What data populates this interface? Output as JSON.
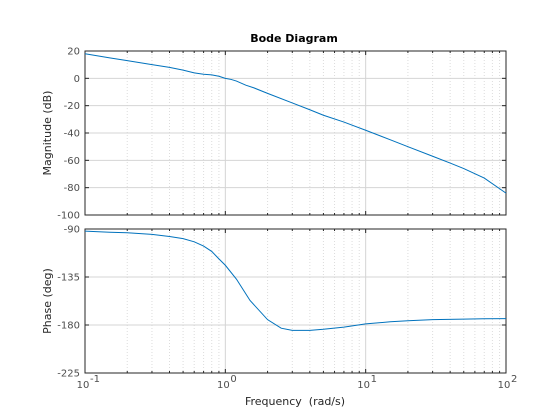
{
  "chart_data": [
    {
      "type": "line",
      "title": "Bode Diagram",
      "ylabel": "Magnitude (dB)",
      "xscale": "log",
      "xlim": [
        0.1,
        100
      ],
      "ylim": [
        -100,
        20
      ],
      "yticks": [
        "20",
        "0",
        "-20",
        "-40",
        "-60",
        "-80",
        "-100"
      ],
      "ytick_values": [
        20,
        0,
        -20,
        -40,
        -60,
        -80,
        -100
      ],
      "grid": true,
      "series": [
        {
          "color": "#0072bd",
          "x": [
            0.1,
            0.15,
            0.2,
            0.3,
            0.4,
            0.5,
            0.6,
            0.7,
            0.8,
            0.9,
            1.0,
            1.1,
            1.2,
            1.4,
            1.6,
            2,
            3,
            4,
            5,
            7,
            10,
            15,
            20,
            30,
            40,
            50,
            70,
            100
          ],
          "y": [
            18,
            15,
            13,
            10,
            8,
            6,
            4,
            3,
            2.5,
            1.5,
            0,
            -0.8,
            -2,
            -5,
            -7,
            -11,
            -18,
            -23,
            -27,
            -32,
            -38,
            -45,
            -50,
            -57,
            -62,
            -66,
            -73,
            -84
          ]
        }
      ]
    },
    {
      "type": "line",
      "xlabel": "Frequency  (rad/s)",
      "ylabel": "Phase (deg)",
      "xscale": "log",
      "xlim": [
        0.1,
        100
      ],
      "ylim": [
        -225,
        -90
      ],
      "xticks": [
        "10",
        "10",
        "10",
        "10"
      ],
      "xtick_exponents": [
        "-1",
        "0",
        "1",
        "2"
      ],
      "xtick_values": [
        0.1,
        1,
        10,
        100
      ],
      "yticks": [
        "-90",
        "-135",
        "-180",
        "-225"
      ],
      "ytick_values": [
        -90,
        -135,
        -180,
        -225
      ],
      "grid": true,
      "series": [
        {
          "color": "#0072bd",
          "x": [
            0.1,
            0.15,
            0.2,
            0.3,
            0.4,
            0.5,
            0.6,
            0.7,
            0.8,
            0.9,
            1.0,
            1.2,
            1.5,
            2,
            2.5,
            3,
            4,
            5,
            7,
            10,
            15,
            20,
            30,
            50,
            70,
            100
          ],
          "y": [
            -92,
            -93,
            -93.5,
            -95,
            -97,
            -99,
            -102,
            -106,
            -111,
            -118,
            -124,
            -137,
            -157,
            -175,
            -183,
            -185,
            -185,
            -184,
            -182,
            -179,
            -177,
            -176,
            -175,
            -174.5,
            -174.2,
            -174
          ]
        }
      ]
    }
  ]
}
